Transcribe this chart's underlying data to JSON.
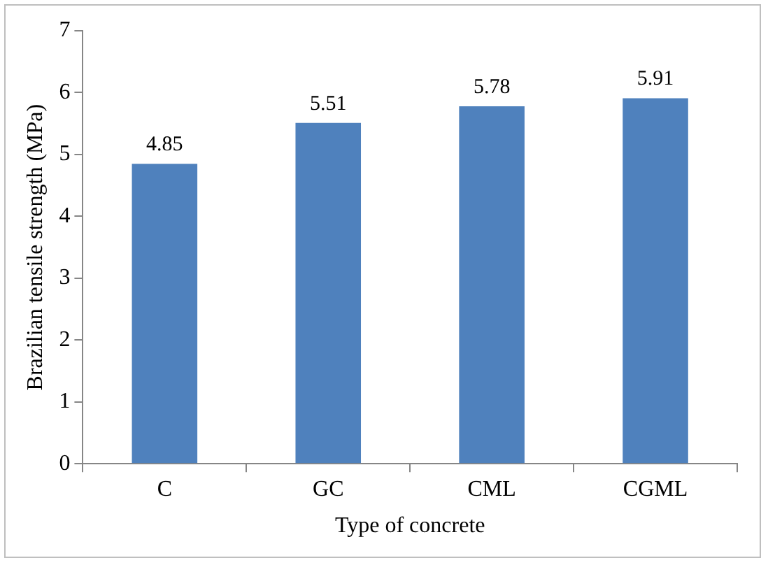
{
  "chart_data": {
    "type": "bar",
    "categories": [
      "C",
      "GC",
      "CML",
      "CGML"
    ],
    "values": [
      4.85,
      5.51,
      5.78,
      5.91
    ],
    "color": "#4f81bd",
    "xlabel": "Type of concrete",
    "ylabel": "Brazilian tensile strength (MPa)",
    "ylim": [
      0,
      7
    ],
    "yticks": [
      0,
      1,
      2,
      3,
      4,
      5,
      6,
      7
    ],
    "grid": false,
    "legend": false,
    "data_labels": true
  }
}
